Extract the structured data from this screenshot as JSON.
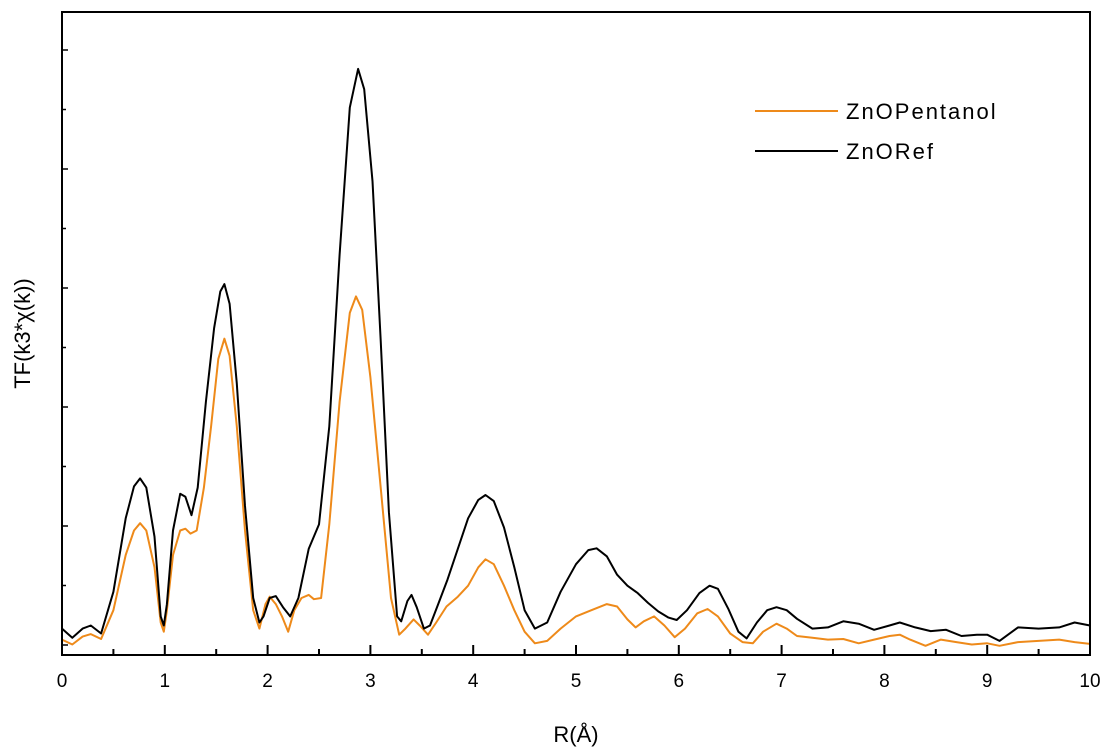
{
  "chart_data": {
    "type": "line",
    "xlabel": "R(Å)",
    "ylabel": "TF(k3*χ(k))",
    "xlim": [
      0,
      10
    ],
    "ylim": [
      0,
      1.0
    ],
    "x_ticks": [
      "0",
      "1",
      "2",
      "3",
      "4",
      "5",
      "6",
      "7",
      "8",
      "9",
      "10"
    ],
    "y_tick_labels_shown": false,
    "grid": false,
    "legend_position": "top-right",
    "series": [
      {
        "name": "ZnOPentanol",
        "color": "#ee8a1a",
        "points": [
          [
            0.0,
            0.012
          ],
          [
            0.1,
            0.004
          ],
          [
            0.2,
            0.017
          ],
          [
            0.28,
            0.021
          ],
          [
            0.38,
            0.013
          ],
          [
            0.5,
            0.06
          ],
          [
            0.62,
            0.15
          ],
          [
            0.7,
            0.19
          ],
          [
            0.76,
            0.202
          ],
          [
            0.82,
            0.19
          ],
          [
            0.9,
            0.13
          ],
          [
            0.96,
            0.04
          ],
          [
            0.99,
            0.025
          ],
          [
            1.02,
            0.06
          ],
          [
            1.08,
            0.15
          ],
          [
            1.15,
            0.19
          ],
          [
            1.2,
            0.193
          ],
          [
            1.25,
            0.185
          ],
          [
            1.31,
            0.19
          ],
          [
            1.38,
            0.26
          ],
          [
            1.45,
            0.36
          ],
          [
            1.52,
            0.47
          ],
          [
            1.58,
            0.503
          ],
          [
            1.63,
            0.475
          ],
          [
            1.7,
            0.36
          ],
          [
            1.78,
            0.19
          ],
          [
            1.86,
            0.06
          ],
          [
            1.92,
            0.03
          ],
          [
            1.98,
            0.07
          ],
          [
            2.02,
            0.082
          ],
          [
            2.08,
            0.07
          ],
          [
            2.14,
            0.05
          ],
          [
            2.2,
            0.025
          ],
          [
            2.26,
            0.06
          ],
          [
            2.33,
            0.08
          ],
          [
            2.4,
            0.085
          ],
          [
            2.45,
            0.078
          ],
          [
            2.52,
            0.08
          ],
          [
            2.6,
            0.2
          ],
          [
            2.7,
            0.4
          ],
          [
            2.8,
            0.545
          ],
          [
            2.86,
            0.572
          ],
          [
            2.92,
            0.55
          ],
          [
            3.0,
            0.44
          ],
          [
            3.1,
            0.26
          ],
          [
            3.2,
            0.08
          ],
          [
            3.28,
            0.02
          ],
          [
            3.34,
            0.03
          ],
          [
            3.42,
            0.045
          ],
          [
            3.48,
            0.035
          ],
          [
            3.56,
            0.02
          ],
          [
            3.64,
            0.04
          ],
          [
            3.74,
            0.066
          ],
          [
            3.85,
            0.082
          ],
          [
            3.95,
            0.1
          ],
          [
            4.05,
            0.13
          ],
          [
            4.12,
            0.143
          ],
          [
            4.2,
            0.135
          ],
          [
            4.3,
            0.1
          ],
          [
            4.4,
            0.06
          ],
          [
            4.5,
            0.025
          ],
          [
            4.6,
            0.006
          ],
          [
            4.72,
            0.01
          ],
          [
            4.85,
            0.03
          ],
          [
            5.0,
            0.05
          ],
          [
            5.15,
            0.06
          ],
          [
            5.3,
            0.07
          ],
          [
            5.4,
            0.066
          ],
          [
            5.5,
            0.045
          ],
          [
            5.58,
            0.032
          ],
          [
            5.66,
            0.042
          ],
          [
            5.76,
            0.05
          ],
          [
            5.86,
            0.035
          ],
          [
            5.96,
            0.016
          ],
          [
            6.06,
            0.03
          ],
          [
            6.18,
            0.055
          ],
          [
            6.28,
            0.062
          ],
          [
            6.38,
            0.05
          ],
          [
            6.5,
            0.022
          ],
          [
            6.62,
            0.008
          ],
          [
            6.72,
            0.006
          ],
          [
            6.82,
            0.025
          ],
          [
            6.95,
            0.038
          ],
          [
            7.05,
            0.03
          ],
          [
            7.15,
            0.018
          ],
          [
            7.3,
            0.015
          ],
          [
            7.45,
            0.012
          ],
          [
            7.6,
            0.013
          ],
          [
            7.75,
            0.006
          ],
          [
            7.9,
            0.012
          ],
          [
            8.05,
            0.018
          ],
          [
            8.15,
            0.02
          ],
          [
            8.25,
            0.012
          ],
          [
            8.4,
            0.002
          ],
          [
            8.55,
            0.012
          ],
          [
            8.7,
            0.008
          ],
          [
            8.85,
            0.004
          ],
          [
            9.0,
            0.006
          ],
          [
            9.12,
            0.002
          ],
          [
            9.3,
            0.008
          ],
          [
            9.5,
            0.01
          ],
          [
            9.7,
            0.012
          ],
          [
            9.85,
            0.008
          ],
          [
            10.0,
            0.005
          ]
        ]
      },
      {
        "name": "ZnORef",
        "color": "#000000",
        "points": [
          [
            0.0,
            0.03
          ],
          [
            0.1,
            0.015
          ],
          [
            0.2,
            0.03
          ],
          [
            0.28,
            0.035
          ],
          [
            0.38,
            0.022
          ],
          [
            0.5,
            0.09
          ],
          [
            0.62,
            0.21
          ],
          [
            0.7,
            0.262
          ],
          [
            0.76,
            0.275
          ],
          [
            0.82,
            0.26
          ],
          [
            0.9,
            0.18
          ],
          [
            0.96,
            0.05
          ],
          [
            0.99,
            0.035
          ],
          [
            1.02,
            0.07
          ],
          [
            1.08,
            0.19
          ],
          [
            1.15,
            0.25
          ],
          [
            1.2,
            0.245
          ],
          [
            1.26,
            0.215
          ],
          [
            1.32,
            0.26
          ],
          [
            1.4,
            0.4
          ],
          [
            1.48,
            0.52
          ],
          [
            1.54,
            0.58
          ],
          [
            1.58,
            0.592
          ],
          [
            1.63,
            0.56
          ],
          [
            1.7,
            0.43
          ],
          [
            1.78,
            0.23
          ],
          [
            1.86,
            0.08
          ],
          [
            1.92,
            0.04
          ],
          [
            1.96,
            0.05
          ],
          [
            2.02,
            0.08
          ],
          [
            2.08,
            0.083
          ],
          [
            2.15,
            0.065
          ],
          [
            2.22,
            0.05
          ],
          [
            2.3,
            0.08
          ],
          [
            2.4,
            0.16
          ],
          [
            2.5,
            0.2
          ],
          [
            2.6,
            0.36
          ],
          [
            2.7,
            0.64
          ],
          [
            2.8,
            0.88
          ],
          [
            2.88,
            0.943
          ],
          [
            2.94,
            0.91
          ],
          [
            3.02,
            0.76
          ],
          [
            3.1,
            0.5
          ],
          [
            3.18,
            0.22
          ],
          [
            3.26,
            0.05
          ],
          [
            3.3,
            0.042
          ],
          [
            3.36,
            0.075
          ],
          [
            3.4,
            0.085
          ],
          [
            3.45,
            0.065
          ],
          [
            3.52,
            0.03
          ],
          [
            3.58,
            0.035
          ],
          [
            3.66,
            0.07
          ],
          [
            3.75,
            0.11
          ],
          [
            3.85,
            0.16
          ],
          [
            3.95,
            0.21
          ],
          [
            4.05,
            0.24
          ],
          [
            4.12,
            0.248
          ],
          [
            4.2,
            0.238
          ],
          [
            4.3,
            0.195
          ],
          [
            4.4,
            0.13
          ],
          [
            4.5,
            0.06
          ],
          [
            4.6,
            0.03
          ],
          [
            4.72,
            0.04
          ],
          [
            4.85,
            0.09
          ],
          [
            5.0,
            0.135
          ],
          [
            5.12,
            0.158
          ],
          [
            5.2,
            0.161
          ],
          [
            5.3,
            0.148
          ],
          [
            5.4,
            0.118
          ],
          [
            5.5,
            0.1
          ],
          [
            5.6,
            0.088
          ],
          [
            5.7,
            0.072
          ],
          [
            5.8,
            0.058
          ],
          [
            5.9,
            0.048
          ],
          [
            5.98,
            0.044
          ],
          [
            6.08,
            0.06
          ],
          [
            6.2,
            0.088
          ],
          [
            6.3,
            0.1
          ],
          [
            6.38,
            0.095
          ],
          [
            6.48,
            0.063
          ],
          [
            6.58,
            0.025
          ],
          [
            6.66,
            0.014
          ],
          [
            6.76,
            0.04
          ],
          [
            6.86,
            0.06
          ],
          [
            6.95,
            0.065
          ],
          [
            7.05,
            0.06
          ],
          [
            7.15,
            0.046
          ],
          [
            7.3,
            0.03
          ],
          [
            7.45,
            0.032
          ],
          [
            7.6,
            0.042
          ],
          [
            7.75,
            0.038
          ],
          [
            7.9,
            0.028
          ],
          [
            8.05,
            0.035
          ],
          [
            8.15,
            0.04
          ],
          [
            8.3,
            0.032
          ],
          [
            8.45,
            0.026
          ],
          [
            8.6,
            0.028
          ],
          [
            8.75,
            0.018
          ],
          [
            8.9,
            0.02
          ],
          [
            9.0,
            0.02
          ],
          [
            9.12,
            0.01
          ],
          [
            9.3,
            0.032
          ],
          [
            9.5,
            0.03
          ],
          [
            9.7,
            0.032
          ],
          [
            9.85,
            0.04
          ],
          [
            10.0,
            0.035
          ]
        ]
      }
    ]
  }
}
